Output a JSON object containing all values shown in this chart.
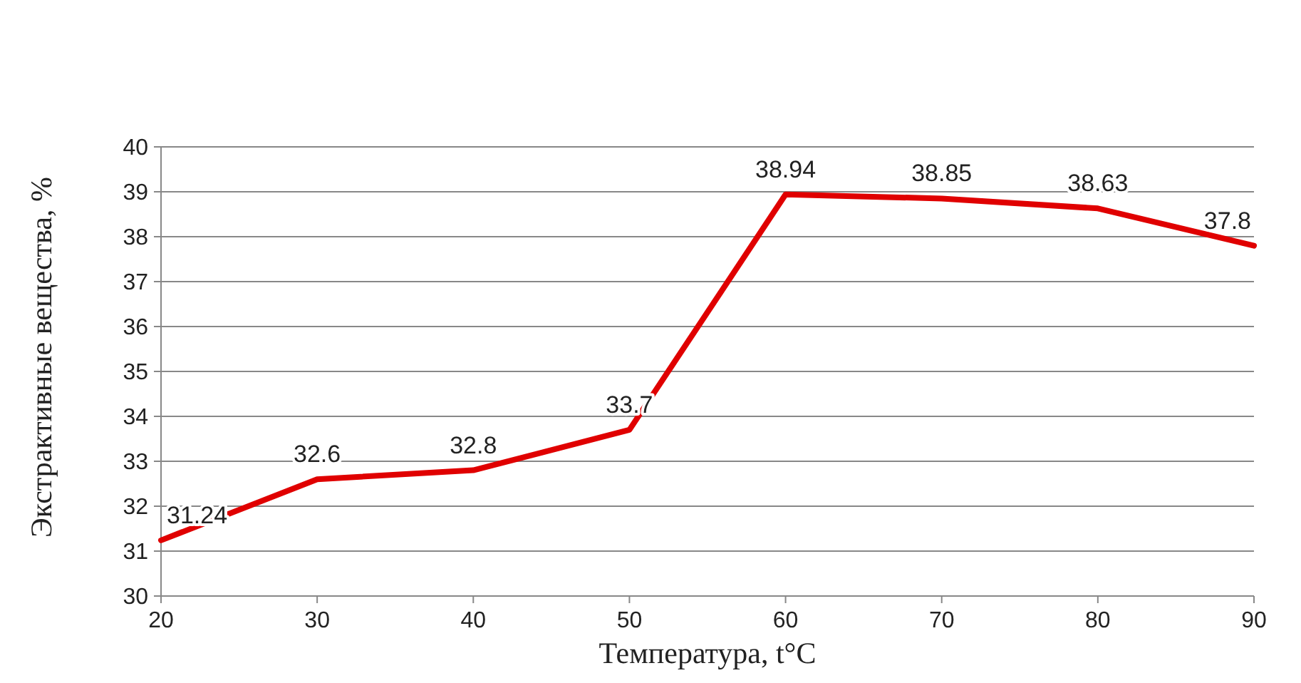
{
  "chart_data": {
    "type": "line",
    "xlabel": "Температура, t°C",
    "ylabel": "Экстрактивные вещества, %",
    "x": [
      20,
      30,
      40,
      50,
      60,
      70,
      80,
      90
    ],
    "series": [
      {
        "color": "#e00000",
        "values": [
          31.24,
          32.6,
          32.8,
          33.7,
          38.94,
          38.85,
          38.63,
          37.8
        ]
      }
    ],
    "xlim": [
      20,
      90
    ],
    "xticks": [
      20,
      30,
      40,
      50,
      60,
      70,
      80,
      90
    ],
    "ylim": [
      30,
      40
    ],
    "yticks": [
      30,
      31,
      32,
      33,
      34,
      35,
      36,
      37,
      38,
      39,
      40
    ],
    "grid": "y",
    "data_labels": true,
    "marker": "none",
    "line_style": "solid"
  }
}
